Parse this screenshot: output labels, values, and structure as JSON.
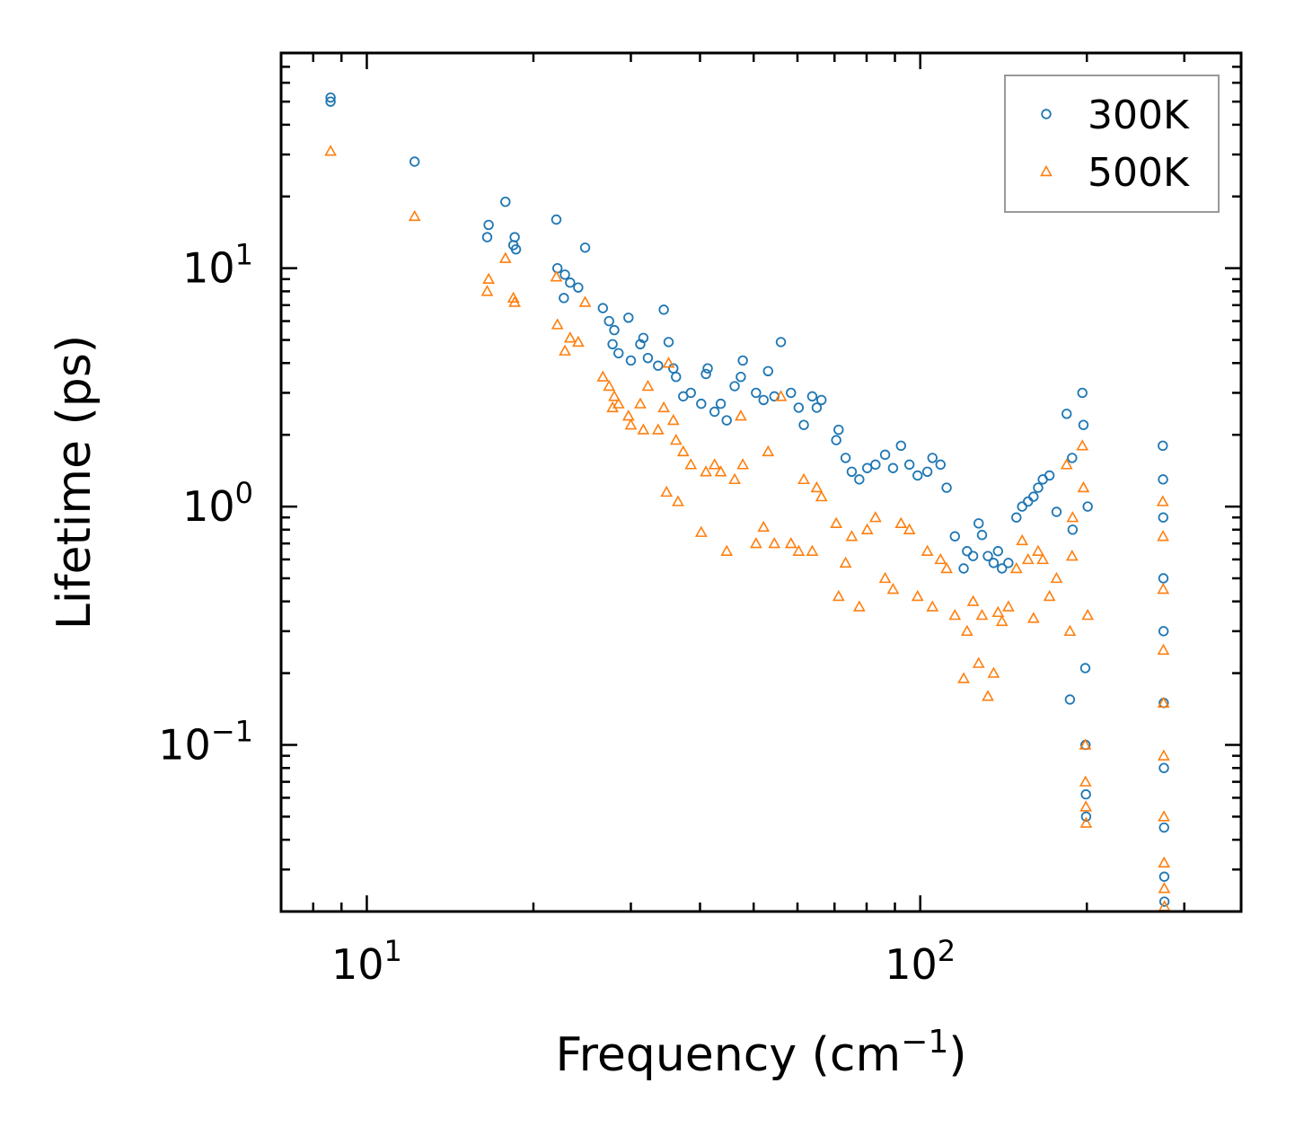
{
  "chart_data": {
    "type": "scatter",
    "xscale": "log",
    "yscale": "log",
    "xlabel": "Frequency (cm",
    "xlabel_sup": "−1",
    "xlabel_suffix": ")",
    "ylabel": "Lifetime (ps)",
    "xlim": [
      7,
      380
    ],
    "ylim": [
      0.02,
      80
    ],
    "x_ticks": [
      {
        "value": 10,
        "base": "10",
        "exp": "1"
      },
      {
        "value": 100,
        "base": "10",
        "exp": "2"
      }
    ],
    "y_ticks": [
      {
        "value": 0.1,
        "base": "10",
        "exp": "−1"
      },
      {
        "value": 1,
        "base": "10",
        "exp": "0"
      },
      {
        "value": 10,
        "base": "10",
        "exp": "1"
      }
    ],
    "legend_position": "top-right",
    "series": [
      {
        "name": "300K",
        "marker": "circle",
        "color": "#1f77b4",
        "points": [
          [
            8.6,
            52
          ],
          [
            8.6,
            50
          ],
          [
            12.2,
            28
          ],
          [
            16.5,
            13.5
          ],
          [
            16.6,
            15.2
          ],
          [
            17.8,
            19
          ],
          [
            18.4,
            12.5
          ],
          [
            18.5,
            13.5
          ],
          [
            18.6,
            12
          ],
          [
            22,
            16
          ],
          [
            22.1,
            10
          ],
          [
            22.8,
            9.4
          ],
          [
            23.3,
            8.7
          ],
          [
            24.1,
            8.3
          ],
          [
            24.8,
            12.2
          ],
          [
            22.7,
            7.5
          ],
          [
            26.7,
            6.8
          ],
          [
            27.4,
            6.0
          ],
          [
            28,
            5.5
          ],
          [
            27.8,
            4.8
          ],
          [
            28.5,
            4.4
          ],
          [
            29.7,
            6.2
          ],
          [
            30,
            4.1
          ],
          [
            31.2,
            4.8
          ],
          [
            31.6,
            5.1
          ],
          [
            32.2,
            4.2
          ],
          [
            33.6,
            3.9
          ],
          [
            34.4,
            6.7
          ],
          [
            35.1,
            4.9
          ],
          [
            35.8,
            3.8
          ],
          [
            36.2,
            3.5
          ],
          [
            37.3,
            2.9
          ],
          [
            38.5,
            3.0
          ],
          [
            40.2,
            2.7
          ],
          [
            41,
            3.6
          ],
          [
            41.3,
            3.8
          ],
          [
            42.5,
            2.5
          ],
          [
            43.6,
            2.7
          ],
          [
            44.7,
            2.3
          ],
          [
            46.2,
            3.2
          ],
          [
            47.4,
            3.5
          ],
          [
            47.8,
            4.1
          ],
          [
            50.5,
            3.0
          ],
          [
            52.1,
            2.8
          ],
          [
            53.1,
            3.7
          ],
          [
            54.5,
            2.9
          ],
          [
            56,
            4.9
          ],
          [
            58.4,
            3.0
          ],
          [
            60.3,
            2.6
          ],
          [
            61.6,
            2.2
          ],
          [
            63.8,
            2.9
          ],
          [
            65,
            2.6
          ],
          [
            66.3,
            2.8
          ],
          [
            70.5,
            1.9
          ],
          [
            71.2,
            2.1
          ],
          [
            73.3,
            1.6
          ],
          [
            75.2,
            1.4
          ],
          [
            77.6,
            1.3
          ],
          [
            80.2,
            1.45
          ],
          [
            83,
            1.5
          ],
          [
            86.4,
            1.65
          ],
          [
            89.3,
            1.45
          ],
          [
            92.3,
            1.8
          ],
          [
            95.6,
            1.5
          ],
          [
            98.9,
            1.35
          ],
          [
            103,
            1.4
          ],
          [
            105.2,
            1.6
          ],
          [
            108.8,
            1.5
          ],
          [
            111.6,
            1.2
          ],
          [
            115.5,
            0.75
          ],
          [
            119.8,
            0.55
          ],
          [
            121.5,
            0.65
          ],
          [
            124.6,
            0.62
          ],
          [
            127.5,
            0.85
          ],
          [
            129.3,
            0.76
          ],
          [
            132.5,
            0.62
          ],
          [
            135.7,
            0.58
          ],
          [
            138.2,
            0.65
          ],
          [
            140.5,
            0.55
          ],
          [
            144.3,
            0.58
          ],
          [
            149.2,
            0.9
          ],
          [
            152.8,
            1.0
          ],
          [
            156.6,
            1.05
          ],
          [
            160.2,
            1.1
          ],
          [
            163.3,
            1.2
          ],
          [
            166.5,
            1.3
          ],
          [
            171.2,
            1.35
          ],
          [
            176.3,
            0.95
          ],
          [
            183.9,
            2.45
          ],
          [
            186.4,
            0.155
          ],
          [
            188.1,
            1.6
          ],
          [
            188.5,
            0.8
          ],
          [
            196.3,
            3.0
          ],
          [
            197.2,
            2.2
          ],
          [
            198.7,
            0.21
          ],
          [
            198.9,
            0.1
          ],
          [
            199.2,
            0.062
          ],
          [
            199.4,
            0.05
          ],
          [
            200.7,
            1.0
          ],
          [
            274.3,
            1.8
          ],
          [
            274.6,
            1.3
          ],
          [
            274.8,
            0.9
          ],
          [
            275,
            0.5
          ],
          [
            275.2,
            0.3
          ],
          [
            275.4,
            0.15
          ],
          [
            275.6,
            0.08
          ],
          [
            275.8,
            0.045
          ],
          [
            276,
            0.028
          ],
          [
            276.2,
            0.022
          ]
        ]
      },
      {
        "name": "500K",
        "marker": "triangle",
        "color": "#ff7f0e",
        "points": [
          [
            8.6,
            31
          ],
          [
            12.2,
            16.5
          ],
          [
            16.5,
            8
          ],
          [
            16.6,
            9
          ],
          [
            17.8,
            11
          ],
          [
            18.4,
            7.5
          ],
          [
            18.5,
            7.2
          ],
          [
            22,
            9.2
          ],
          [
            22.1,
            5.8
          ],
          [
            22.8,
            4.5
          ],
          [
            23.3,
            5.1
          ],
          [
            24.1,
            4.9
          ],
          [
            24.8,
            7.2
          ],
          [
            26.7,
            3.5
          ],
          [
            27.4,
            3.2
          ],
          [
            28,
            2.9
          ],
          [
            27.8,
            2.6
          ],
          [
            28.5,
            2.7
          ],
          [
            29.7,
            2.4
          ],
          [
            30,
            2.2
          ],
          [
            31.2,
            2.7
          ],
          [
            31.6,
            2.1
          ],
          [
            32.2,
            3.2
          ],
          [
            33.6,
            2.1
          ],
          [
            34.4,
            2.6
          ],
          [
            35.1,
            4.0
          ],
          [
            35.8,
            2.3
          ],
          [
            36.2,
            1.9
          ],
          [
            34.8,
            1.15
          ],
          [
            36.5,
            1.05
          ],
          [
            37.3,
            1.7
          ],
          [
            38.5,
            1.5
          ],
          [
            40.2,
            0.78
          ],
          [
            41,
            1.4
          ],
          [
            42.5,
            1.5
          ],
          [
            43.6,
            1.4
          ],
          [
            44.7,
            0.65
          ],
          [
            46.2,
            1.3
          ],
          [
            47.4,
            2.4
          ],
          [
            47.8,
            1.5
          ],
          [
            50.5,
            0.7
          ],
          [
            52.1,
            0.82
          ],
          [
            53.1,
            1.7
          ],
          [
            54.5,
            0.7
          ],
          [
            56,
            2.9
          ],
          [
            58.4,
            0.7
          ],
          [
            60.3,
            0.65
          ],
          [
            61.6,
            1.3
          ],
          [
            63.8,
            0.65
          ],
          [
            65,
            1.2
          ],
          [
            66.3,
            1.1
          ],
          [
            70.5,
            0.85
          ],
          [
            71.2,
            0.42
          ],
          [
            73.3,
            0.58
          ],
          [
            75.2,
            0.75
          ],
          [
            77.6,
            0.38
          ],
          [
            80.2,
            0.8
          ],
          [
            83,
            0.9
          ],
          [
            86.4,
            0.5
          ],
          [
            89.3,
            0.45
          ],
          [
            92.3,
            0.85
          ],
          [
            95.6,
            0.8
          ],
          [
            98.9,
            0.42
          ],
          [
            103,
            0.65
          ],
          [
            105.2,
            0.38
          ],
          [
            108.8,
            0.6
          ],
          [
            111.6,
            0.55
          ],
          [
            115.5,
            0.35
          ],
          [
            119.8,
            0.19
          ],
          [
            121.5,
            0.3
          ],
          [
            124.6,
            0.4
          ],
          [
            127.5,
            0.22
          ],
          [
            129.3,
            0.35
          ],
          [
            132.5,
            0.16
          ],
          [
            135.7,
            0.2
          ],
          [
            138.2,
            0.36
          ],
          [
            140.5,
            0.33
          ],
          [
            144.3,
            0.38
          ],
          [
            149.2,
            0.55
          ],
          [
            152.8,
            0.72
          ],
          [
            156.6,
            0.6
          ],
          [
            160.2,
            0.34
          ],
          [
            163.3,
            0.65
          ],
          [
            166.5,
            0.6
          ],
          [
            171.2,
            0.42
          ],
          [
            176.3,
            0.5
          ],
          [
            183.9,
            1.5
          ],
          [
            186.4,
            0.3
          ],
          [
            188.1,
            0.62
          ],
          [
            188.5,
            0.9
          ],
          [
            196.3,
            1.8
          ],
          [
            197.2,
            1.2
          ],
          [
            198.7,
            0.1
          ],
          [
            198.9,
            0.07
          ],
          [
            199.2,
            0.055
          ],
          [
            199.4,
            0.047
          ],
          [
            200.7,
            0.35
          ],
          [
            274.3,
            1.05
          ],
          [
            274.6,
            0.75
          ],
          [
            274.8,
            0.45
          ],
          [
            275,
            0.25
          ],
          [
            275.2,
            0.15
          ],
          [
            275.4,
            0.09
          ],
          [
            275.6,
            0.05
          ],
          [
            275.8,
            0.032
          ],
          [
            276,
            0.025
          ],
          [
            276.2,
            0.021
          ]
        ]
      }
    ]
  }
}
